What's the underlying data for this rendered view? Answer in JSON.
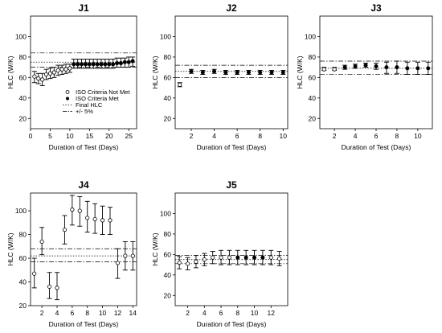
{
  "chart_data": [
    {
      "type": "scatter",
      "title": "J1",
      "xlabel": "Duration of Test (Days)",
      "ylabel": "HLC (W/K)",
      "xlim": [
        0,
        27
      ],
      "ylim": [
        10,
        120
      ],
      "xticks": [
        "0",
        "5",
        "10",
        "15",
        "20",
        "25"
      ],
      "yticks": [
        "20",
        "40",
        "60",
        "80",
        "100"
      ],
      "final_hlc": 75,
      "band": [
        70,
        84
      ],
      "legend": {
        "position": "bottom-right",
        "entries": [
          "ISO Criteria Not Met",
          "ISO Criteria Met",
          "Final HLC",
          "+/- 5%"
        ]
      },
      "points": [
        {
          "x": 1,
          "y": 61,
          "lo": 55,
          "hi": 66,
          "met": false
        },
        {
          "x": 2,
          "y": 59,
          "lo": 54,
          "hi": 64,
          "met": false
        },
        {
          "x": 3,
          "y": 58,
          "lo": 52,
          "hi": 64,
          "met": false
        },
        {
          "x": 4,
          "y": 63,
          "lo": 58,
          "hi": 68,
          "met": false
        },
        {
          "x": 5,
          "y": 64,
          "lo": 59,
          "hi": 69,
          "met": false
        },
        {
          "x": 6,
          "y": 65,
          "lo": 60,
          "hi": 70,
          "met": false
        },
        {
          "x": 7,
          "y": 67,
          "lo": 62,
          "hi": 72,
          "met": false
        },
        {
          "x": 8,
          "y": 68,
          "lo": 63,
          "hi": 72,
          "met": false
        },
        {
          "x": 9,
          "y": 68,
          "lo": 64,
          "hi": 73,
          "met": false
        },
        {
          "x": 10,
          "y": 69,
          "lo": 65,
          "hi": 73,
          "met": false
        },
        {
          "x": 11,
          "y": 73,
          "lo": 69,
          "hi": 78,
          "met": true
        },
        {
          "x": 12,
          "y": 73,
          "lo": 69,
          "hi": 78,
          "met": true
        },
        {
          "x": 13,
          "y": 73,
          "lo": 69,
          "hi": 78,
          "met": true
        },
        {
          "x": 14,
          "y": 73,
          "lo": 69,
          "hi": 78,
          "met": true
        },
        {
          "x": 15,
          "y": 73,
          "lo": 69,
          "hi": 78,
          "met": true
        },
        {
          "x": 16,
          "y": 73,
          "lo": 69,
          "hi": 78,
          "met": true
        },
        {
          "x": 17,
          "y": 73,
          "lo": 69,
          "hi": 78,
          "met": true
        },
        {
          "x": 18,
          "y": 73,
          "lo": 69,
          "hi": 78,
          "met": true
        },
        {
          "x": 19,
          "y": 73,
          "lo": 69,
          "hi": 78,
          "met": true
        },
        {
          "x": 20,
          "y": 73,
          "lo": 69,
          "hi": 78,
          "met": true
        },
        {
          "x": 21,
          "y": 73,
          "lo": 69,
          "hi": 78,
          "met": true
        },
        {
          "x": 22,
          "y": 74,
          "lo": 70,
          "hi": 79,
          "met": true
        },
        {
          "x": 23,
          "y": 74,
          "lo": 70,
          "hi": 79,
          "met": true
        },
        {
          "x": 24,
          "y": 75,
          "lo": 70,
          "hi": 79,
          "met": true
        },
        {
          "x": 25,
          "y": 75,
          "lo": 70,
          "hi": 80,
          "met": true
        },
        {
          "x": 26,
          "y": 76,
          "lo": 71,
          "hi": 80,
          "met": true
        }
      ]
    },
    {
      "type": "scatter",
      "title": "J2",
      "xlabel": "Duration of Test (Days)",
      "ylabel": "HLC (W/K)",
      "xlim": [
        0.6,
        10.4
      ],
      "ylim": [
        10,
        120
      ],
      "xticks": [
        "2",
        "4",
        "6",
        "8",
        "10"
      ],
      "yticks": [
        "20",
        "40",
        "60",
        "80",
        "100"
      ],
      "final_hlc": 66,
      "band": [
        60,
        72
      ],
      "points": [
        {
          "x": 1,
          "y": 53,
          "lo": 51,
          "hi": 55,
          "met": false
        },
        {
          "x": 2,
          "y": 66,
          "lo": 64,
          "hi": 68,
          "met": true
        },
        {
          "x": 3,
          "y": 65,
          "lo": 63,
          "hi": 67,
          "met": true
        },
        {
          "x": 4,
          "y": 66,
          "lo": 64,
          "hi": 68,
          "met": true
        },
        {
          "x": 5,
          "y": 65,
          "lo": 63,
          "hi": 67,
          "met": true
        },
        {
          "x": 6,
          "y": 65,
          "lo": 63,
          "hi": 67,
          "met": true
        },
        {
          "x": 7,
          "y": 65,
          "lo": 63,
          "hi": 67,
          "met": true
        },
        {
          "x": 8,
          "y": 65,
          "lo": 63,
          "hi": 67,
          "met": true
        },
        {
          "x": 9,
          "y": 65,
          "lo": 63,
          "hi": 67,
          "met": true
        },
        {
          "x": 10,
          "y": 65,
          "lo": 63,
          "hi": 67,
          "met": true
        }
      ]
    },
    {
      "type": "scatter",
      "title": "J3",
      "xlabel": "Duration of Test (Days)",
      "ylabel": "HLC (W/K)",
      "xlim": [
        0.6,
        11.4
      ],
      "ylim": [
        10,
        120
      ],
      "xticks": [
        "2",
        "4",
        "6",
        "8",
        "10"
      ],
      "yticks": [
        "20",
        "40",
        "60",
        "80",
        "100"
      ],
      "final_hlc": 69,
      "band": [
        63,
        76
      ],
      "points": [
        {
          "x": 1,
          "y": 68,
          "lo": 67,
          "hi": 70,
          "met": false
        },
        {
          "x": 2,
          "y": 68,
          "lo": 67,
          "hi": 70,
          "met": false
        },
        {
          "x": 3,
          "y": 70,
          "lo": 68,
          "hi": 72,
          "met": true
        },
        {
          "x": 4,
          "y": 71,
          "lo": 69,
          "hi": 73,
          "met": true
        },
        {
          "x": 5,
          "y": 72,
          "lo": 70,
          "hi": 74,
          "met": true
        },
        {
          "x": 6,
          "y": 71,
          "lo": 68,
          "hi": 74,
          "met": true
        },
        {
          "x": 7,
          "y": 70,
          "lo": 64,
          "hi": 75,
          "met": true
        },
        {
          "x": 8,
          "y": 70,
          "lo": 64,
          "hi": 76,
          "met": true
        },
        {
          "x": 9,
          "y": 69,
          "lo": 63,
          "hi": 75,
          "met": true
        },
        {
          "x": 10,
          "y": 69,
          "lo": 63,
          "hi": 75,
          "met": true
        },
        {
          "x": 11,
          "y": 69,
          "lo": 63,
          "hi": 75,
          "met": true
        }
      ]
    },
    {
      "type": "scatter",
      "title": "J4",
      "xlabel": "Duration of Test (Days)",
      "ylabel": "HLC (W/K)",
      "xlim": [
        0.5,
        14.5
      ],
      "ylim": [
        20,
        115
      ],
      "xticks": [
        "2",
        "4",
        "6",
        "8",
        "10",
        "12",
        "14"
      ],
      "yticks": [
        "20",
        "40",
        "60",
        "80",
        "100"
      ],
      "final_hlc": 62,
      "band": [
        57,
        68
      ],
      "points": [
        {
          "x": 1,
          "y": 47,
          "lo": 35,
          "hi": 60,
          "met": false
        },
        {
          "x": 2,
          "y": 74,
          "lo": 63,
          "hi": 86,
          "met": false
        },
        {
          "x": 3,
          "y": 36,
          "lo": 26,
          "hi": 48,
          "met": false
        },
        {
          "x": 4,
          "y": 35,
          "lo": 25,
          "hi": 48,
          "met": false
        },
        {
          "x": 5,
          "y": 84,
          "lo": 72,
          "hi": 96,
          "met": false
        },
        {
          "x": 6,
          "y": 101,
          "lo": 88,
          "hi": 113,
          "met": false
        },
        {
          "x": 7,
          "y": 100,
          "lo": 87,
          "hi": 112,
          "met": false
        },
        {
          "x": 8,
          "y": 94,
          "lo": 82,
          "hi": 108,
          "met": false
        },
        {
          "x": 9,
          "y": 93,
          "lo": 81,
          "hi": 106,
          "met": false
        },
        {
          "x": 10,
          "y": 92,
          "lo": 80,
          "hi": 104,
          "met": false
        },
        {
          "x": 11,
          "y": 92,
          "lo": 80,
          "hi": 103,
          "met": false
        },
        {
          "x": 12,
          "y": 56,
          "lo": 43,
          "hi": 68,
          "met": false
        },
        {
          "x": 13,
          "y": 62,
          "lo": 50,
          "hi": 74,
          "met": false
        },
        {
          "x": 14,
          "y": 62,
          "lo": 50,
          "hi": 74,
          "met": false
        }
      ]
    },
    {
      "type": "scatter",
      "title": "J5",
      "xlabel": "Duration of Test (Days)",
      "ylabel": "HLC (W/K)",
      "xlim": [
        0.5,
        14
      ],
      "ylim": [
        10,
        120
      ],
      "xticks": [
        "2",
        "4",
        "6",
        "8",
        "10",
        "12"
      ],
      "yticks": [
        "20",
        "40",
        "60",
        "80",
        "100"
      ],
      "final_hlc": 55,
      "band": [
        51,
        59
      ],
      "points": [
        {
          "x": 1,
          "y": 52,
          "lo": 46,
          "hi": 58,
          "met": false
        },
        {
          "x": 2,
          "y": 51,
          "lo": 45,
          "hi": 57,
          "met": false
        },
        {
          "x": 3,
          "y": 53,
          "lo": 47,
          "hi": 59,
          "met": false
        },
        {
          "x": 4,
          "y": 55,
          "lo": 49,
          "hi": 61,
          "met": false
        },
        {
          "x": 5,
          "y": 57,
          "lo": 51,
          "hi": 63,
          "met": false
        },
        {
          "x": 6,
          "y": 57,
          "lo": 50,
          "hi": 64,
          "met": false
        },
        {
          "x": 7,
          "y": 57,
          "lo": 50,
          "hi": 64,
          "met": false
        },
        {
          "x": 8,
          "y": 57,
          "lo": 50,
          "hi": 64,
          "met": true
        },
        {
          "x": 9,
          "y": 57,
          "lo": 50,
          "hi": 64,
          "met": true
        },
        {
          "x": 10,
          "y": 57,
          "lo": 50,
          "hi": 64,
          "met": true
        },
        {
          "x": 11,
          "y": 57,
          "lo": 50,
          "hi": 64,
          "met": true
        },
        {
          "x": 12,
          "y": 57,
          "lo": 50,
          "hi": 64,
          "met": false
        },
        {
          "x": 13,
          "y": 56,
          "lo": 49,
          "hi": 63,
          "met": false
        }
      ]
    }
  ]
}
